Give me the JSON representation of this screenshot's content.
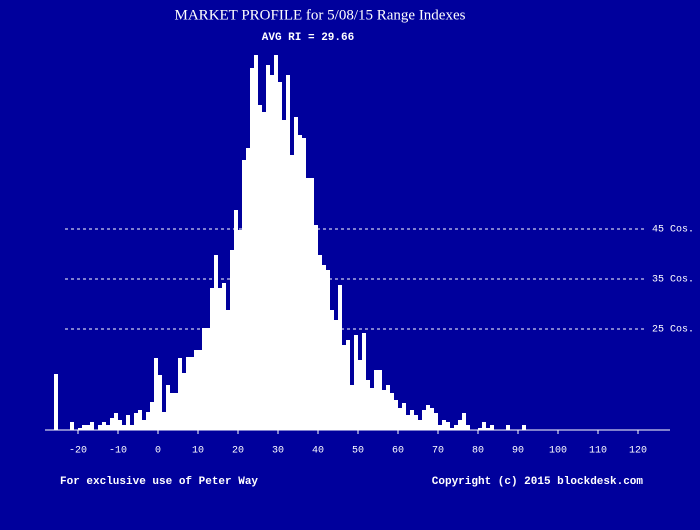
{
  "chart_data": {
    "type": "histogram",
    "title": "MARKET PROFILE for 5/08/15 Range Indexes",
    "subtitle": "AVG RI = 29.66",
    "color": "#ffffff",
    "bins": [
      -26,
      -25,
      -24,
      -23,
      -22,
      -21,
      -20,
      -19,
      -18,
      -17,
      -16,
      -15,
      -14,
      -13,
      -12,
      -11,
      -10,
      -9,
      -8,
      -7,
      -6,
      -5,
      -4,
      -3,
      -2,
      -1,
      0,
      1,
      2,
      3,
      4,
      5,
      6,
      7,
      8,
      9,
      10,
      11,
      12,
      13,
      14,
      15,
      16,
      17,
      18,
      19,
      20,
      21,
      22,
      23,
      24,
      25,
      26,
      27,
      28,
      29,
      30,
      31,
      32,
      33,
      34,
      35,
      36,
      37,
      38,
      39,
      40,
      41,
      42,
      43,
      44,
      45,
      46,
      47,
      48,
      49,
      50,
      51,
      52,
      53,
      54,
      55,
      56,
      57,
      58,
      59,
      60,
      61,
      62,
      63,
      64,
      65,
      66,
      67,
      68,
      69,
      70,
      71,
      72,
      73,
      74,
      75,
      76,
      77,
      78,
      79,
      80,
      81,
      82,
      83,
      84,
      85,
      86,
      87,
      88,
      89,
      90,
      91,
      92
    ],
    "values": [
      16.0,
      4.8,
      4.8,
      4.8,
      6.4,
      4.8,
      5.2,
      5.8,
      5.8,
      6.4,
      4.8,
      5.8,
      6.4,
      5.8,
      7.2,
      8.2,
      6.8,
      5.8,
      7.8,
      5.8,
      8.2,
      8.8,
      6.8,
      8.4,
      10.4,
      19.2,
      15.8,
      8.4,
      13.8,
      12.2,
      12.2,
      19.2,
      16.2,
      19.4,
      19.4,
      20.8,
      20.8,
      25.2,
      25.2,
      33.2,
      39.8,
      33.2,
      34.2,
      28.8,
      40.8,
      48.8,
      44.8,
      58.8,
      61.2,
      77.2,
      79.8,
      69.8,
      68.4,
      77.8,
      75.8,
      79.8,
      74.4,
      66.8,
      75.8,
      59.8,
      67.4,
      63.8,
      63.2,
      55.2,
      55.2,
      45.8,
      39.8,
      37.8,
      36.8,
      28.8,
      26.8,
      33.8,
      21.8,
      22.8,
      13.8,
      23.8,
      18.8,
      24.2,
      14.8,
      13.2,
      16.8,
      16.8,
      12.8,
      13.8,
      12.2,
      10.8,
      9.2,
      10.2,
      7.8,
      8.8,
      7.8,
      6.8,
      8.8,
      9.8,
      9.2,
      8.2,
      5.8,
      6.8,
      6.4,
      5.2,
      5.8,
      6.8,
      8.2,
      5.8,
      4.8,
      4.8,
      5.2,
      6.4,
      5.2,
      5.8,
      4.8,
      4.8,
      4.8,
      5.8,
      4.8,
      4.8,
      4.8,
      5.8
    ],
    "xlim": [
      -28.25,
      128
    ],
    "xticks": [
      -20,
      -10,
      0,
      10,
      20,
      30,
      40,
      50,
      60,
      70,
      80,
      90,
      100,
      110,
      120
    ],
    "ylim": [
      4.8,
      80.8
    ],
    "reference_lines": [
      {
        "value": 25,
        "label": "25 Cos."
      },
      {
        "value": 35,
        "label": "35 Cos."
      },
      {
        "value": 45,
        "label": "45 Cos."
      }
    ],
    "footer_left": "For exclusive use of Peter Way",
    "footer_right": "Copyright (c) 2015 blockdesk.com"
  }
}
